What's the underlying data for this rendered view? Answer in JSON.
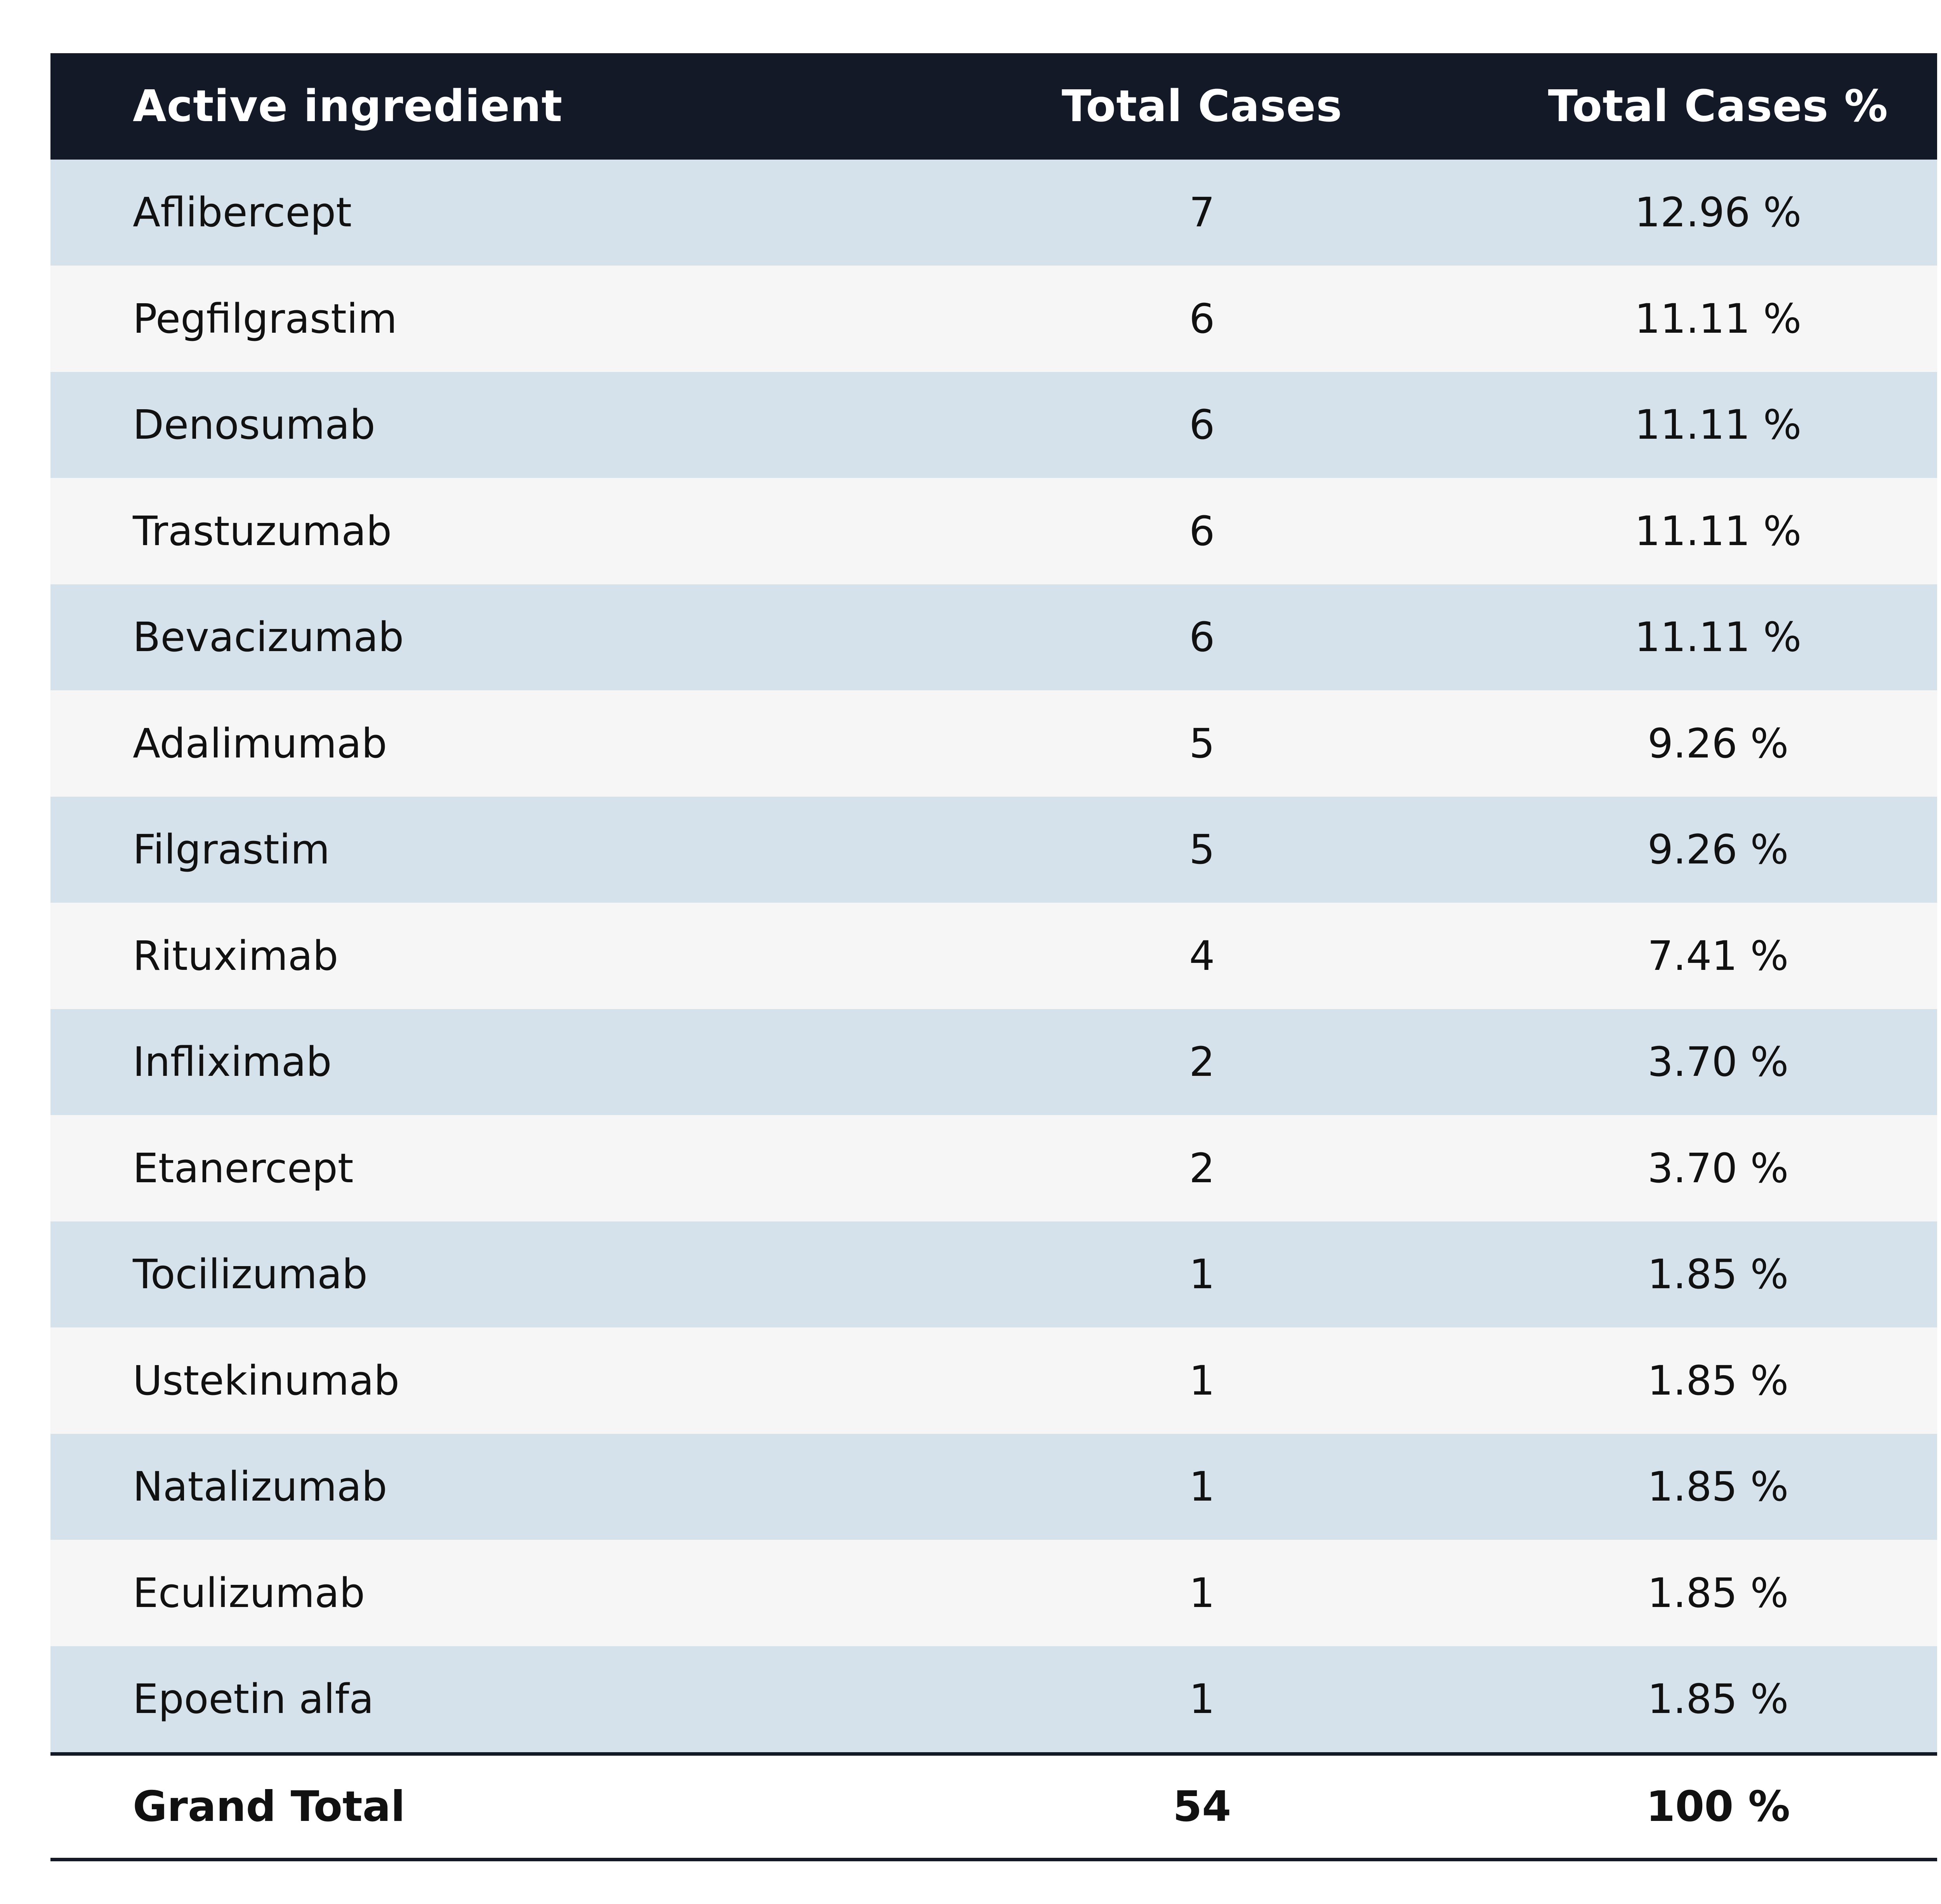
{
  "table": {
    "headers": {
      "ingredient": "Active ingredient",
      "cases": "Total Cases",
      "pct": "Total Cases %"
    },
    "rows": [
      {
        "ingredient": "Aflibercept",
        "cases": "7",
        "pct": "12.96 %"
      },
      {
        "ingredient": "Pegfilgrastim",
        "cases": "6",
        "pct": "11.11 %"
      },
      {
        "ingredient": "Denosumab",
        "cases": "6",
        "pct": "11.11 %"
      },
      {
        "ingredient": "Trastuzumab",
        "cases": "6",
        "pct": "11.11 %"
      },
      {
        "ingredient": "Bevacizumab",
        "cases": "6",
        "pct": "11.11 %"
      },
      {
        "ingredient": "Adalimumab",
        "cases": "5",
        "pct": "9.26 %"
      },
      {
        "ingredient": "Filgrastim",
        "cases": "5",
        "pct": "9.26 %"
      },
      {
        "ingredient": "Rituximab",
        "cases": "4",
        "pct": "7.41 %"
      },
      {
        "ingredient": "Infliximab",
        "cases": "2",
        "pct": "3.70 %"
      },
      {
        "ingredient": "Etanercept",
        "cases": "2",
        "pct": "3.70 %"
      },
      {
        "ingredient": "Tocilizumab",
        "cases": "1",
        "pct": "1.85 %"
      },
      {
        "ingredient": "Ustekinumab",
        "cases": "1",
        "pct": "1.85 %"
      },
      {
        "ingredient": "Natalizumab",
        "cases": "1",
        "pct": "1.85 %"
      },
      {
        "ingredient": "Eculizumab",
        "cases": "1",
        "pct": "1.85 %"
      },
      {
        "ingredient": "Epoetin alfa",
        "cases": "1",
        "pct": "1.85 %"
      }
    ],
    "footer": {
      "ingredient": "Grand Total",
      "cases": "54",
      "pct": "100 %"
    }
  },
  "colors": {
    "header_bg": "#131926",
    "row_odd_bg": "#d6e2eb",
    "row_even_bg": "#f6f6f6"
  }
}
